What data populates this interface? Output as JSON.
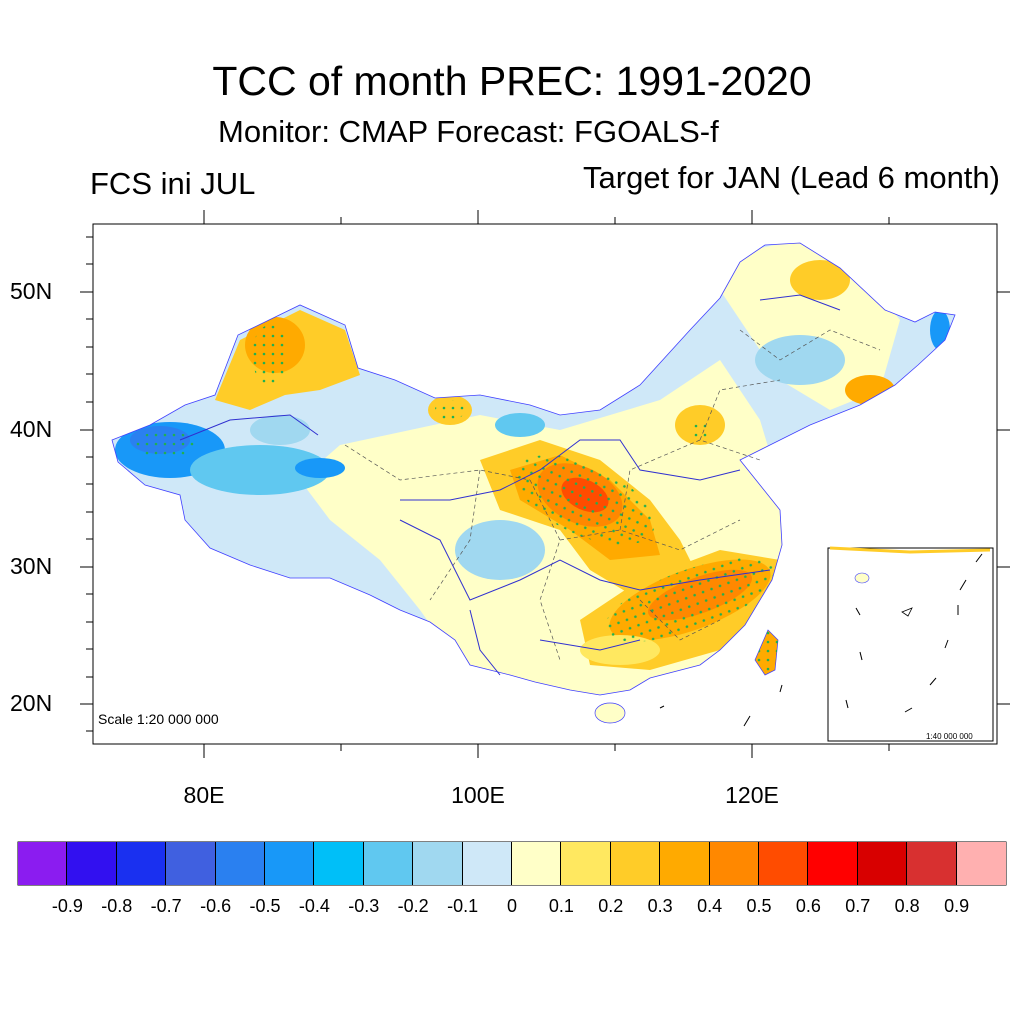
{
  "title": "TCC of month PREC: 1991-2020",
  "subtitle": "Monitor: CMAP   Forecast: FGOALS-f",
  "left_label": "FCS ini JUL",
  "right_label": "Target for JAN (Lead 6 month)",
  "map": {
    "lat_ticks": [
      "50N",
      "40N",
      "30N",
      "20N"
    ],
    "lon_ticks": [
      "80E",
      "100E",
      "120E"
    ],
    "scale_label": "Scale 1:20 000 000",
    "inset_scale_label": "1:40 000 000",
    "colors": {
      "land_base": "#cfe8f8",
      "border": "#555555",
      "river": "#3030d0",
      "stipple": "#20b050"
    }
  },
  "colorbar": {
    "labels": [
      "-0.9",
      "-0.8",
      "-0.7",
      "-0.6",
      "-0.5",
      "-0.4",
      "-0.3",
      "-0.2",
      "-0.1",
      "0",
      "0.1",
      "0.2",
      "0.3",
      "0.4",
      "0.5",
      "0.6",
      "0.7",
      "0.8",
      "0.9"
    ],
    "colors": [
      "#8b1cf0",
      "#3210f0",
      "#1a30f0",
      "#4060e0",
      "#2a80f0",
      "#1898f8",
      "#00bff8",
      "#60c8f0",
      "#a0d8f0",
      "#cfe8f8",
      "#ffffc8",
      "#ffe860",
      "#ffcc28",
      "#ffaa00",
      "#ff8800",
      "#ff4c00",
      "#ff0000",
      "#d80000",
      "#d83030",
      "#ffb0b0"
    ]
  }
}
